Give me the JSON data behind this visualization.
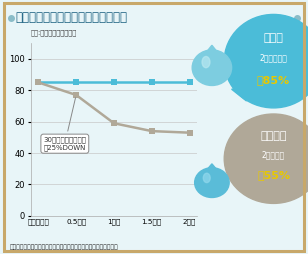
{
  "title": "エアコンと床暖房の肌水分量の推移",
  "unit_label": "単位:マイクロジーメンス",
  "source_label": "出典：東京ガス（株）「床暖房になると、空気のいい家になる。」",
  "x_labels": [
    "スタート時",
    "0.5時間",
    "1時間",
    "1.5時間",
    "2時間"
  ],
  "x_values": [
    0,
    0.5,
    1,
    1.5,
    2
  ],
  "floor_heating_values": [
    85,
    85,
    85,
    85,
    85
  ],
  "aircon_values": [
    85,
    77,
    59,
    54,
    53
  ],
  "floor_heating_color": "#4BBCD8",
  "aircon_color": "#B0A898",
  "ylim": [
    0,
    110
  ],
  "yticks": [
    0,
    20,
    40,
    60,
    80,
    100
  ],
  "bg_color": "#E8F5F8",
  "title_bg_color": "#AED8E6",
  "border_color": "#C8A86A",
  "annotation_text": "30分を越えた段階で\n約25%DOWN",
  "floor_bubble_color": "#4BBCD8",
  "aircon_bubble_color": "#B0A898",
  "floor_label_line1": "床暖房",
  "floor_label_line2": "2時間後でも",
  "floor_label_line3": "約85%",
  "aircon_label_line1": "エアコン",
  "aircon_label_line2": "2時間後に",
  "aircon_label_line3": "約55%",
  "highlight_color": "#E8C800",
  "drop_color_light": "#7DCDE0",
  "drop_color_dark": "#4BBCD8"
}
